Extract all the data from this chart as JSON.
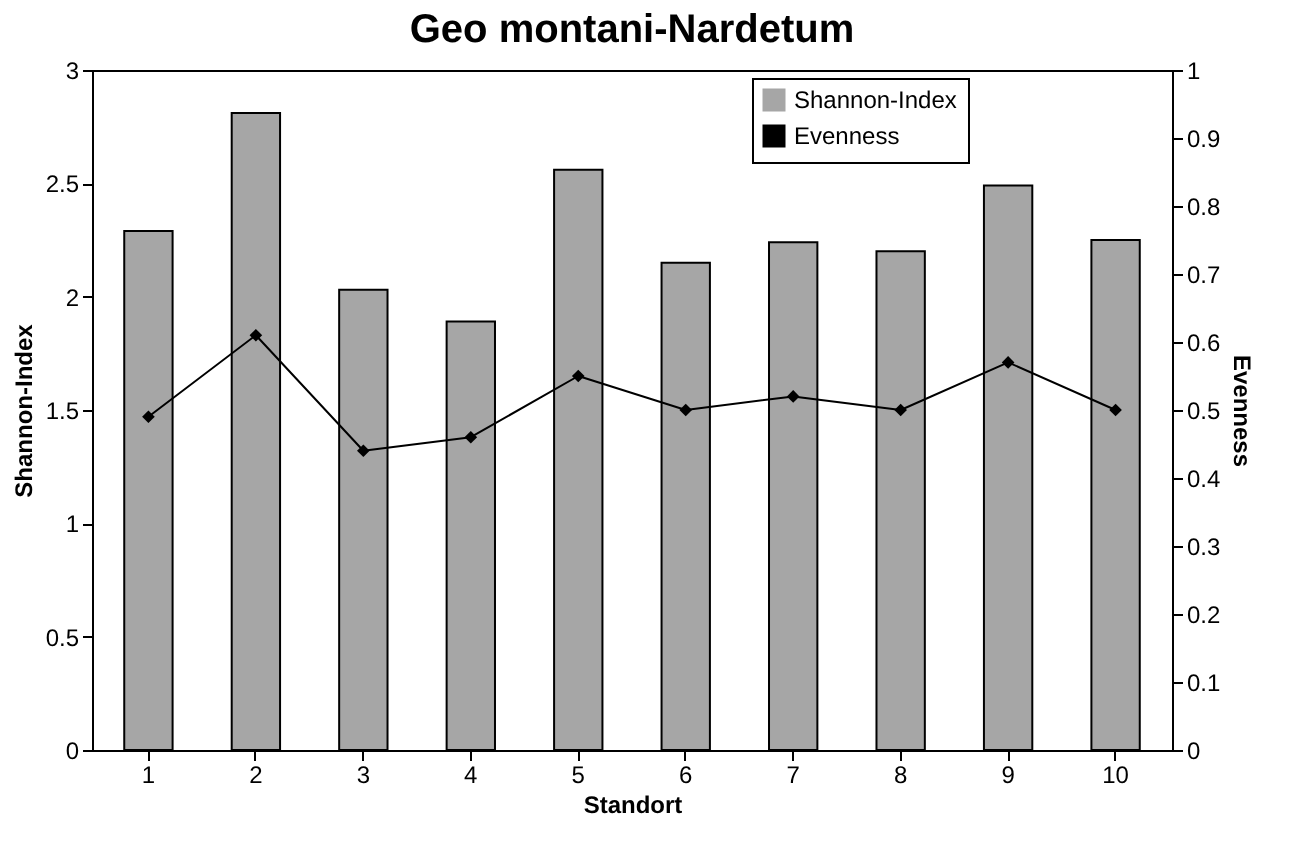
{
  "chart_data": {
    "type": "bar",
    "title": "Geo montani-Nardetum",
    "xlabel": "Standort",
    "ylabel": "Shannon-Index",
    "y2label": "Evenness",
    "categories": [
      "1",
      "2",
      "3",
      "4",
      "5",
      "6",
      "7",
      "8",
      "9",
      "10"
    ],
    "series": [
      {
        "name": "Shannon-Index",
        "color": "#a6a6a6",
        "values": [
          2.29,
          2.81,
          2.03,
          1.89,
          2.56,
          2.15,
          2.24,
          2.2,
          2.49,
          2.25
        ]
      },
      {
        "name": "Evenness",
        "type": "line",
        "axis": "y2",
        "color": "#000000",
        "marker": "diamond",
        "values": [
          0.49,
          0.61,
          0.44,
          0.46,
          0.55,
          0.5,
          0.52,
          0.5,
          0.57,
          0.5
        ]
      }
    ],
    "ylim": [
      0,
      3
    ],
    "yticks": [
      0,
      0.5,
      1,
      1.5,
      2,
      2.5,
      3
    ],
    "y2lim": [
      0,
      1
    ],
    "y2ticks": [
      0,
      0.1,
      0.2,
      0.3,
      0.4,
      0.5,
      0.6,
      0.7,
      0.8,
      0.9,
      1
    ],
    "grid": false,
    "legend": "top right"
  }
}
